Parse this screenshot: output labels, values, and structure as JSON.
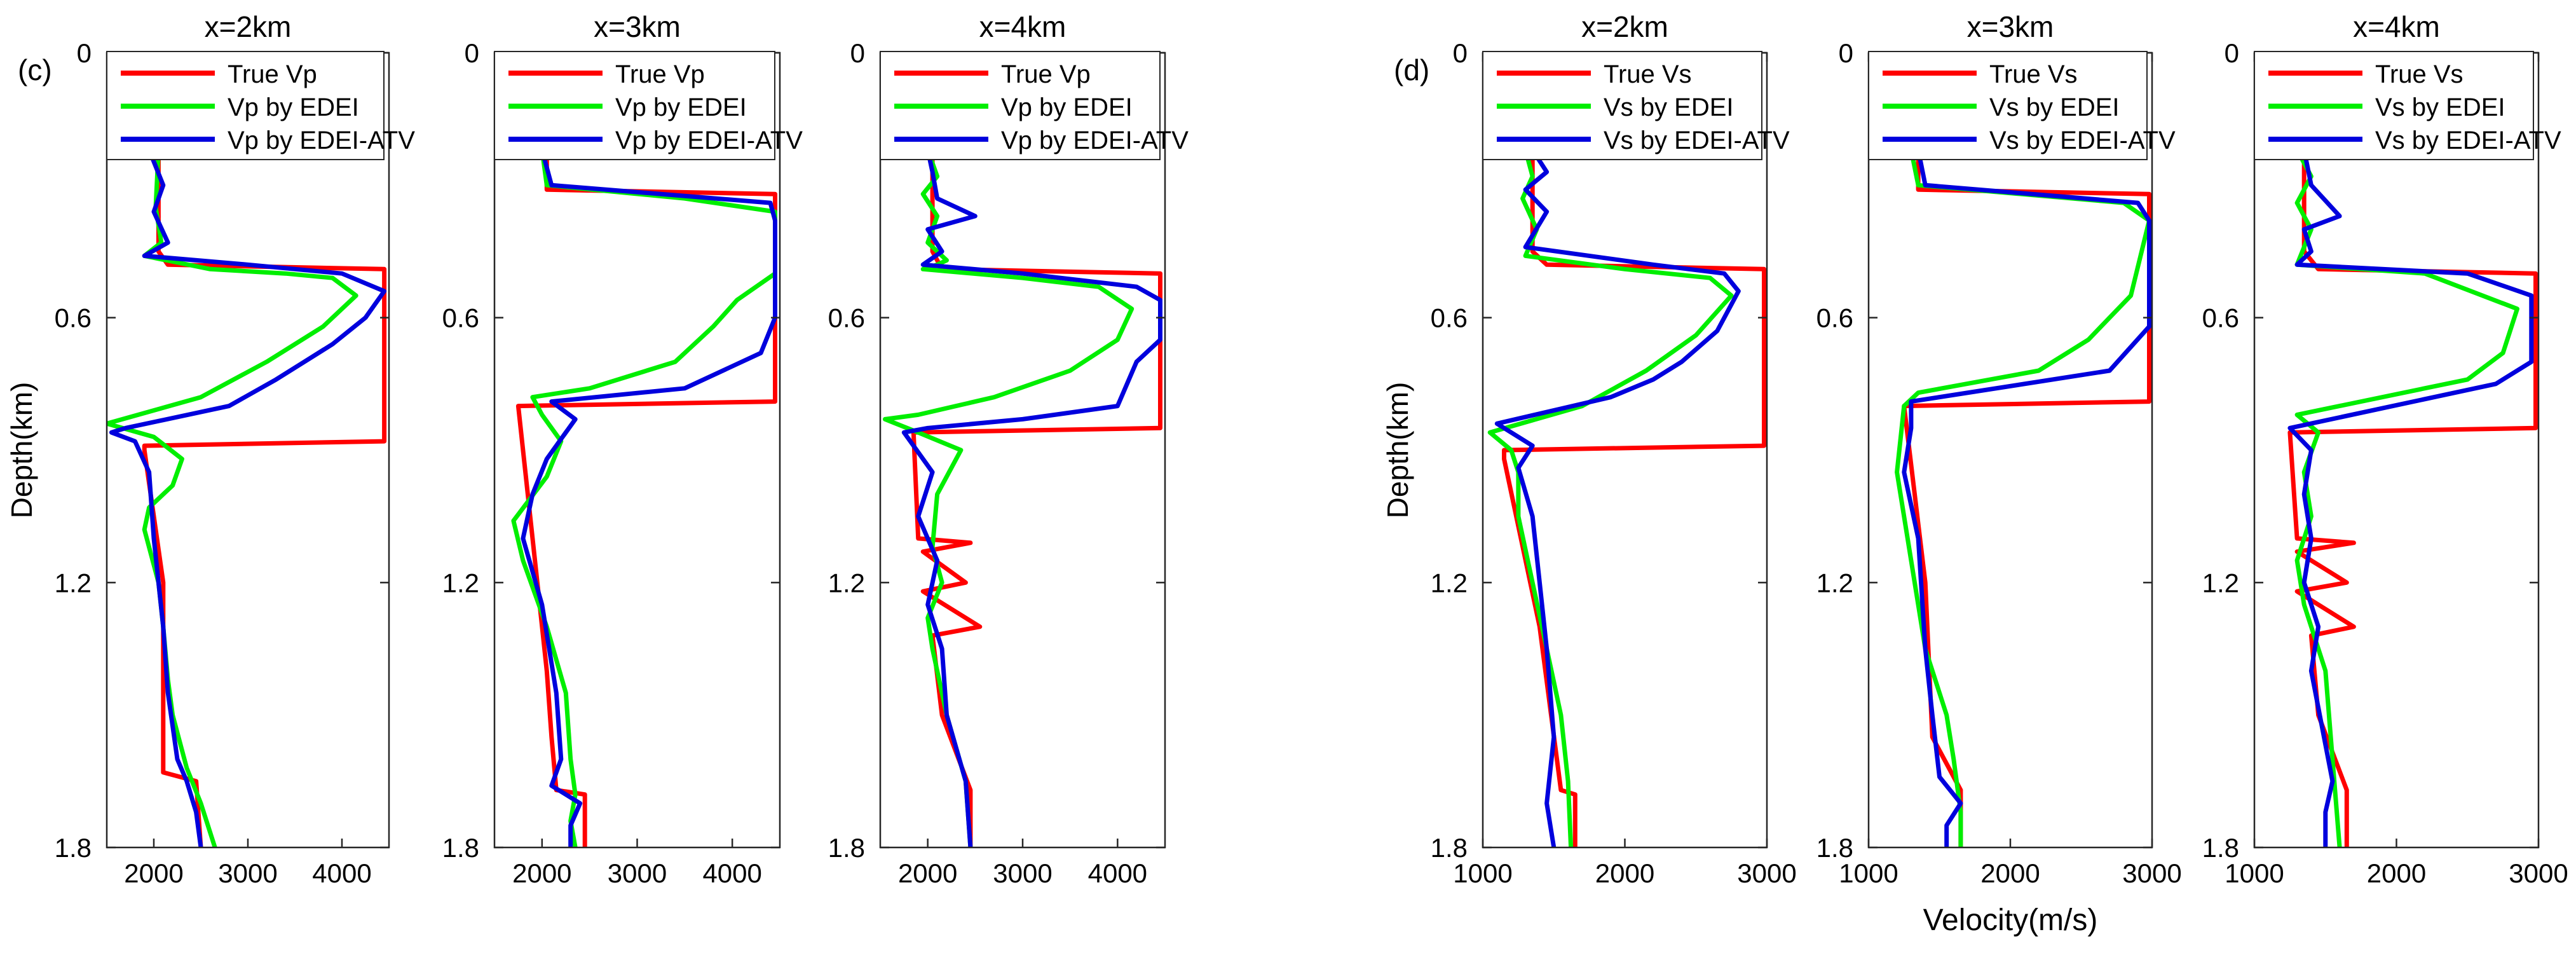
{
  "figure": {
    "type": "line"
  },
  "colors": {
    "true": "#ff0000",
    "edei": "#00ee00",
    "atv": "#0000dd",
    "axis": "#262626",
    "text": "#000000"
  },
  "chart_data": [
    {
      "type": "line",
      "panel_label": "(c)",
      "title": "x=2km",
      "xlabel": "",
      "ylabel": "Depth(km)",
      "xlim": [
        1500,
        4500
      ],
      "ylim": [
        0,
        1.8
      ],
      "y_reversed": true,
      "grid": false,
      "legend_position": "top",
      "xticks": [
        2000,
        3000,
        4000
      ],
      "xtick_labels": [
        "2000",
        "3000",
        "4000"
      ],
      "yticks": [
        0,
        0.6,
        1.2,
        1.8
      ],
      "ytick_labels": [
        "0",
        "0.6",
        "1.2",
        "1.8"
      ],
      "series": [
        {
          "name": "True Vp",
          "color": "#ff0000",
          "x": [
            2050,
            2050,
            2150,
            4450,
            4450,
            1900,
            1900,
            2100,
            2100,
            2450,
            2500
          ],
          "y": [
            0.22,
            0.45,
            0.48,
            0.49,
            0.88,
            0.89,
            0.9,
            1.2,
            1.63,
            1.65,
            1.8
          ]
        },
        {
          "name": "Vp by EDEI",
          "color": "#00ee00",
          "x": [
            2050,
            2020,
            2080,
            1900,
            2600,
            3400,
            3900,
            4150,
            3800,
            3200,
            2500,
            1500,
            2000,
            2300,
            2200,
            1950,
            1900,
            2050,
            2100,
            2150,
            2200,
            2350,
            2500,
            2650
          ],
          "y": [
            0.22,
            0.35,
            0.43,
            0.46,
            0.49,
            0.5,
            0.51,
            0.55,
            0.62,
            0.7,
            0.78,
            0.84,
            0.87,
            0.92,
            0.98,
            1.03,
            1.08,
            1.2,
            1.3,
            1.42,
            1.5,
            1.62,
            1.7,
            1.8
          ]
        },
        {
          "name": "Vp by EDEI-ATV",
          "color": "#0000dd",
          "x": [
            1950,
            2100,
            2000,
            2150,
            1900,
            3000,
            4000,
            4450,
            4250,
            3900,
            3600,
            3300,
            2800,
            1700,
            1550,
            1800,
            1950,
            2000,
            2100,
            2150,
            2250,
            2350,
            2450,
            2500
          ],
          "y": [
            0.22,
            0.3,
            0.36,
            0.43,
            0.46,
            0.48,
            0.5,
            0.54,
            0.6,
            0.66,
            0.7,
            0.74,
            0.8,
            0.85,
            0.86,
            0.88,
            0.95,
            1.1,
            1.3,
            1.45,
            1.6,
            1.65,
            1.72,
            1.8
          ]
        }
      ],
      "legend": [
        "True Vp",
        "Vp by EDEI",
        "Vp by EDEI-ATV"
      ]
    },
    {
      "type": "line",
      "panel_label": "",
      "title": "x=3km",
      "xlabel": "",
      "ylabel": "",
      "xlim": [
        1500,
        4500
      ],
      "ylim": [
        0,
        1.8
      ],
      "y_reversed": true,
      "grid": false,
      "legend_position": "top",
      "xticks": [
        2000,
        3000,
        4000
      ],
      "xtick_labels": [
        "2000",
        "3000",
        "4000"
      ],
      "yticks": [
        0,
        0.6,
        1.2,
        1.8
      ],
      "ytick_labels": [
        "0",
        "0.6",
        "1.2",
        "1.8"
      ],
      "series": [
        {
          "name": "True Vp",
          "color": "#ff0000",
          "x": [
            2050,
            2050,
            4450,
            4450,
            1750,
            1950,
            2050,
            2100,
            2150,
            2450,
            2450
          ],
          "y": [
            0.22,
            0.31,
            0.32,
            0.79,
            0.8,
            1.2,
            1.4,
            1.55,
            1.67,
            1.68,
            1.8
          ]
        },
        {
          "name": "Vp by EDEI",
          "color": "#00ee00",
          "x": [
            2000,
            2050,
            3500,
            4450,
            4450,
            4050,
            3800,
            3400,
            2500,
            1900,
            2000,
            2200,
            2050,
            1700,
            1800,
            2050,
            2250,
            2300,
            2350,
            2300,
            2350
          ],
          "y": [
            0.22,
            0.3,
            0.33,
            0.36,
            0.5,
            0.56,
            0.62,
            0.7,
            0.76,
            0.78,
            0.82,
            0.88,
            0.96,
            1.06,
            1.15,
            1.3,
            1.45,
            1.6,
            1.68,
            1.74,
            1.8
          ]
        },
        {
          "name": "Vp by EDEI-ATV",
          "color": "#0000dd",
          "x": [
            2000,
            2100,
            4400,
            4450,
            4450,
            4300,
            3500,
            2100,
            2350,
            2050,
            1900,
            1800,
            2000,
            2150,
            2200,
            2100,
            2400,
            2300,
            2300
          ],
          "y": [
            0.22,
            0.3,
            0.34,
            0.38,
            0.6,
            0.68,
            0.76,
            0.79,
            0.83,
            0.92,
            1.0,
            1.1,
            1.25,
            1.45,
            1.6,
            1.66,
            1.7,
            1.75,
            1.8
          ]
        }
      ],
      "legend": [
        "True Vp",
        "Vp by EDEI",
        "Vp by EDEI-ATV"
      ]
    },
    {
      "type": "line",
      "panel_label": "",
      "title": "x=4km",
      "xlabel": "",
      "ylabel": "",
      "xlim": [
        1500,
        4500
      ],
      "ylim": [
        0,
        1.8
      ],
      "y_reversed": true,
      "grid": false,
      "legend_position": "top",
      "xticks": [
        2000,
        3000,
        4000
      ],
      "xtick_labels": [
        "2000",
        "3000",
        "4000"
      ],
      "yticks": [
        0,
        0.6,
        1.2,
        1.8
      ],
      "ytick_labels": [
        "0",
        "0.6",
        "1.2",
        "1.8"
      ],
      "series": [
        {
          "name": "True Vp",
          "color": "#ff0000",
          "x": [
            2050,
            2050,
            2150,
            4450,
            4450,
            1850,
            1900,
            2450,
            1950,
            2400,
            1950,
            2550,
            2050,
            2150,
            2450,
            2450
          ],
          "y": [
            0.22,
            0.45,
            0.49,
            0.5,
            0.85,
            0.86,
            1.1,
            1.11,
            1.13,
            1.2,
            1.22,
            1.3,
            1.32,
            1.5,
            1.67,
            1.8
          ]
        },
        {
          "name": "Vp by EDEI",
          "color": "#00ee00",
          "x": [
            2000,
            2100,
            1950,
            2100,
            2000,
            2200,
            2100,
            1950,
            3000,
            3800,
            4150,
            4000,
            3500,
            2700,
            1900,
            1550,
            1900,
            2350,
            2100,
            2050,
            2150,
            2000,
            2050,
            2200,
            2400,
            2450
          ],
          "y": [
            0.22,
            0.28,
            0.32,
            0.37,
            0.43,
            0.47,
            0.48,
            0.49,
            0.51,
            0.53,
            0.58,
            0.65,
            0.72,
            0.78,
            0.82,
            0.83,
            0.86,
            0.9,
            1.0,
            1.12,
            1.2,
            1.28,
            1.35,
            1.5,
            1.65,
            1.8
          ]
        },
        {
          "name": "Vp by EDEI-ATV",
          "color": "#0000dd",
          "x": [
            2000,
            2050,
            2100,
            2500,
            2000,
            2150,
            1950,
            3000,
            4200,
            4450,
            4450,
            4200,
            4000,
            3000,
            2000,
            1750,
            2050,
            1900,
            2100,
            2000,
            2150,
            2200,
            2400,
            2450
          ],
          "y": [
            0.22,
            0.27,
            0.33,
            0.37,
            0.4,
            0.45,
            0.48,
            0.5,
            0.53,
            0.56,
            0.65,
            0.7,
            0.8,
            0.83,
            0.85,
            0.86,
            0.95,
            1.05,
            1.15,
            1.25,
            1.35,
            1.5,
            1.65,
            1.8
          ]
        }
      ],
      "legend": [
        "True Vp",
        "Vp by EDEI",
        "Vp by EDEI-ATV"
      ]
    },
    {
      "type": "line",
      "panel_label": "(d)",
      "title": "x=2km",
      "xlabel": "",
      "ylabel": "Depth(km)",
      "xlim": [
        1000,
        3000
      ],
      "ylim": [
        0,
        1.8
      ],
      "y_reversed": true,
      "grid": false,
      "legend_position": "top",
      "xticks": [
        1000,
        2000,
        3000
      ],
      "xtick_labels": [
        "1000",
        "2000",
        "3000"
      ],
      "yticks": [
        0,
        0.6,
        1.2,
        1.8
      ],
      "ytick_labels": [
        "0",
        "0.6",
        "1.2",
        "1.8"
      ],
      "series": [
        {
          "name": "True Vs",
          "color": "#ff0000",
          "x": [
            1350,
            1350,
            1450,
            2980,
            2980,
            1150,
            1150,
            1400,
            1550,
            1650,
            1650
          ],
          "y": [
            0.22,
            0.45,
            0.48,
            0.49,
            0.89,
            0.9,
            0.92,
            1.3,
            1.67,
            1.68,
            1.8
          ]
        },
        {
          "name": "Vs by EDEI",
          "color": "#00ee00",
          "x": [
            1300,
            1350,
            1280,
            1380,
            1300,
            2000,
            2600,
            2750,
            2500,
            2150,
            1700,
            1050,
            1200,
            1250,
            1250,
            1350,
            1450,
            1550,
            1600,
            1620
          ],
          "y": [
            0.22,
            0.28,
            0.33,
            0.4,
            0.46,
            0.49,
            0.51,
            0.55,
            0.64,
            0.72,
            0.8,
            0.86,
            0.9,
            0.95,
            1.05,
            1.2,
            1.35,
            1.5,
            1.65,
            1.8
          ]
        },
        {
          "name": "Vs by EDEI-ATV",
          "color": "#0000dd",
          "x": [
            1350,
            1450,
            1300,
            1450,
            1300,
            2200,
            2700,
            2800,
            2650,
            2400,
            2200,
            1900,
            1100,
            1350,
            1250,
            1350,
            1400,
            1450,
            1500,
            1450,
            1500
          ],
          "y": [
            0.22,
            0.27,
            0.31,
            0.36,
            0.44,
            0.48,
            0.5,
            0.54,
            0.63,
            0.7,
            0.74,
            0.78,
            0.84,
            0.89,
            0.94,
            1.05,
            1.2,
            1.35,
            1.55,
            1.7,
            1.8
          ]
        }
      ],
      "legend": [
        "True Vs",
        "Vs by EDEI",
        "Vs by EDEI-ATV"
      ]
    },
    {
      "type": "line",
      "panel_label": "",
      "title": "x=3km",
      "xlabel": "Velocity(m/s)",
      "ylabel": "",
      "xlim": [
        1000,
        3000
      ],
      "ylim": [
        0,
        1.8
      ],
      "y_reversed": true,
      "grid": false,
      "legend_position": "top",
      "xticks": [
        1000,
        2000,
        3000
      ],
      "xtick_labels": [
        "1000",
        "2000",
        "3000"
      ],
      "yticks": [
        0,
        0.6,
        1.2,
        1.8
      ],
      "ytick_labels": [
        "0",
        "0.6",
        "1.2",
        "1.8"
      ],
      "series": [
        {
          "name": "True Vs",
          "color": "#ff0000",
          "x": [
            1350,
            1350,
            2980,
            2980,
            1250,
            1400,
            1450,
            1650,
            1650
          ],
          "y": [
            0.22,
            0.31,
            0.32,
            0.79,
            0.8,
            1.2,
            1.55,
            1.67,
            1.8
          ]
        },
        {
          "name": "Vs by EDEI",
          "color": "#00ee00",
          "x": [
            1300,
            1350,
            2800,
            2980,
            2850,
            2550,
            2200,
            1350,
            1250,
            1200,
            1300,
            1400,
            1550,
            1600,
            1650,
            1650
          ],
          "y": [
            0.22,
            0.3,
            0.34,
            0.38,
            0.55,
            0.65,
            0.72,
            0.77,
            0.8,
            0.95,
            1.15,
            1.35,
            1.5,
            1.6,
            1.72,
            1.8
          ]
        },
        {
          "name": "Vs by EDEI-ATV",
          "color": "#0000dd",
          "x": [
            1350,
            1400,
            2900,
            2980,
            2980,
            2700,
            1300,
            1300,
            1250,
            1350,
            1400,
            1450,
            1500,
            1650,
            1550,
            1550
          ],
          "y": [
            0.22,
            0.3,
            0.34,
            0.38,
            0.62,
            0.72,
            0.79,
            0.85,
            0.95,
            1.1,
            1.35,
            1.5,
            1.64,
            1.7,
            1.75,
            1.8
          ]
        }
      ],
      "legend": [
        "True Vs",
        "Vs by EDEI",
        "Vs by EDEI-ATV"
      ]
    },
    {
      "type": "line",
      "panel_label": "",
      "title": "x=4km",
      "xlabel": "",
      "ylabel": "",
      "xlim": [
        1000,
        3000
      ],
      "ylim": [
        0,
        1.8
      ],
      "y_reversed": true,
      "grid": false,
      "legend_position": "top",
      "xticks": [
        1000,
        2000,
        3000
      ],
      "xtick_labels": [
        "1000",
        "2000",
        "3000"
      ],
      "yticks": [
        0,
        0.6,
        1.2,
        1.8
      ],
      "ytick_labels": [
        "0",
        "0.6",
        "1.2",
        "1.8"
      ],
      "series": [
        {
          "name": "True Vs",
          "color": "#ff0000",
          "x": [
            1350,
            1350,
            1450,
            2980,
            2980,
            1250,
            1300,
            1700,
            1300,
            1650,
            1300,
            1700,
            1400,
            1450,
            1650,
            1650
          ],
          "y": [
            0.22,
            0.45,
            0.49,
            0.5,
            0.85,
            0.86,
            1.1,
            1.11,
            1.13,
            1.2,
            1.22,
            1.3,
            1.32,
            1.5,
            1.67,
            1.8
          ]
        },
        {
          "name": "Vs by EDEI",
          "color": "#00ee00",
          "x": [
            1300,
            1400,
            1300,
            1400,
            1300,
            2200,
            2850,
            2750,
            2500,
            1300,
            1450,
            1350,
            1400,
            1300,
            1350,
            1500,
            1550,
            1600
          ],
          "y": [
            0.22,
            0.28,
            0.34,
            0.4,
            0.48,
            0.5,
            0.58,
            0.68,
            0.74,
            0.82,
            0.86,
            0.95,
            1.05,
            1.15,
            1.25,
            1.4,
            1.6,
            1.8
          ]
        },
        {
          "name": "Vs by EDEI-ATV",
          "color": "#0000dd",
          "x": [
            1350,
            1400,
            1600,
            1350,
            1400,
            1300,
            2500,
            2950,
            2950,
            2700,
            1250,
            1400,
            1350,
            1400,
            1350,
            1450,
            1400,
            1550,
            1500,
            1500
          ],
          "y": [
            0.22,
            0.3,
            0.37,
            0.4,
            0.45,
            0.48,
            0.5,
            0.55,
            0.7,
            0.75,
            0.85,
            0.9,
            1.0,
            1.1,
            1.2,
            1.3,
            1.4,
            1.65,
            1.72,
            1.8
          ]
        }
      ],
      "legend": [
        "True Vs",
        "Vs by EDEI",
        "Vs by EDEI-ATV"
      ]
    }
  ]
}
